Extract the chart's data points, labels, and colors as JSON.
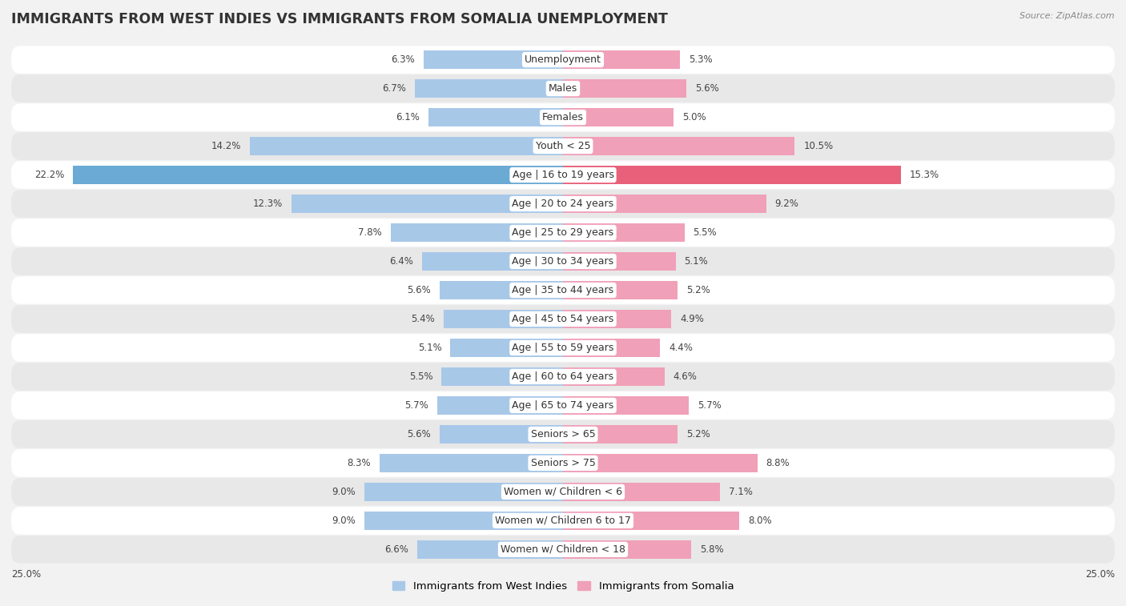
{
  "title": "IMMIGRANTS FROM WEST INDIES VS IMMIGRANTS FROM SOMALIA UNEMPLOYMENT",
  "source": "Source: ZipAtlas.com",
  "categories": [
    "Unemployment",
    "Males",
    "Females",
    "Youth < 25",
    "Age | 16 to 19 years",
    "Age | 20 to 24 years",
    "Age | 25 to 29 years",
    "Age | 30 to 34 years",
    "Age | 35 to 44 years",
    "Age | 45 to 54 years",
    "Age | 55 to 59 years",
    "Age | 60 to 64 years",
    "Age | 65 to 74 years",
    "Seniors > 65",
    "Seniors > 75",
    "Women w/ Children < 6",
    "Women w/ Children 6 to 17",
    "Women w/ Children < 18"
  ],
  "west_indies": [
    6.3,
    6.7,
    6.1,
    14.2,
    22.2,
    12.3,
    7.8,
    6.4,
    5.6,
    5.4,
    5.1,
    5.5,
    5.7,
    5.6,
    8.3,
    9.0,
    9.0,
    6.6
  ],
  "somalia": [
    5.3,
    5.6,
    5.0,
    10.5,
    15.3,
    9.2,
    5.5,
    5.1,
    5.2,
    4.9,
    4.4,
    4.6,
    5.7,
    5.2,
    8.8,
    7.1,
    8.0,
    5.8
  ],
  "west_indies_color": "#a8c8e8",
  "somalia_color": "#f0a0b8",
  "west_indies_highlight_color": "#6aaad4",
  "somalia_highlight_color": "#e8607a",
  "highlight_row": 4,
  "background_color": "#f2f2f2",
  "row_odd_color": "#ffffff",
  "row_even_color": "#e8e8e8",
  "axis_limit": 25.0,
  "bar_height": 0.62,
  "title_fontsize": 12.5,
  "label_fontsize": 9,
  "value_fontsize": 8.5,
  "legend_fontsize": 9.5,
  "source_fontsize": 8,
  "bottom_label_25_left": "25.0%",
  "bottom_label_25_right": "25.0%"
}
